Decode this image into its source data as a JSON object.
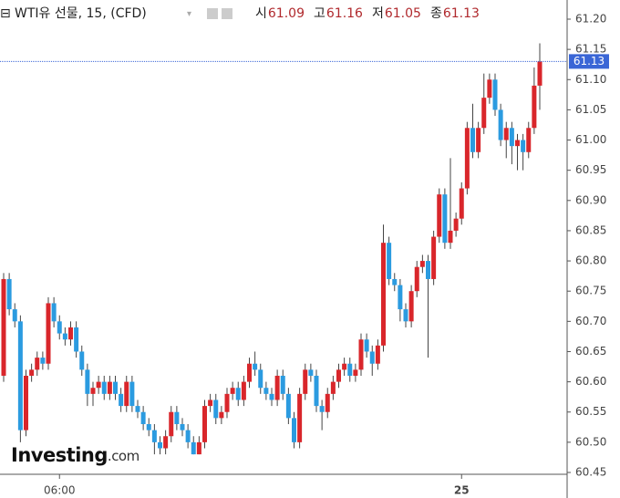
{
  "chart_data": {
    "type": "candlestick",
    "title": "WTI유 선물, 15, (CFD)",
    "ohlc_legend": [
      {
        "label": "시",
        "value": 61.09
      },
      {
        "label": "고",
        "value": 61.16
      },
      {
        "label": "저",
        "value": 61.05
      },
      {
        "label": "종",
        "value": 61.13
      }
    ],
    "logo_main": "Investing",
    "logo_suffix": ".com",
    "up_color": "#d9262b",
    "down_color": "#2b9be0",
    "last_price": 61.13,
    "last_price_color": "#3a66d6",
    "ylim": [
      60.45,
      61.2
    ],
    "yticks": [
      60.45,
      {
        "value": 60.5,
        "label": "60.50"
      },
      60.55,
      {
        "value": 60.6,
        "label": "60.60"
      },
      60.65,
      {
        "value": 60.7,
        "label": "60.70"
      },
      60.75,
      {
        "value": 60.8,
        "label": "60.80"
      },
      60.85,
      {
        "value": 60.9,
        "label": "60.90"
      },
      60.95,
      {
        "value": 61.0,
        "label": "61.00"
      },
      61.05,
      {
        "value": 61.1,
        "label": "61.10"
      },
      61.15,
      {
        "value": 61.2,
        "label": "61.20"
      }
    ],
    "xticks": [
      {
        "value": 10,
        "label": "06:00"
      },
      {
        "value": 82,
        "label": "25"
      }
    ],
    "open": [
      60.61,
      60.77,
      60.72,
      60.7,
      60.52,
      60.61,
      60.62,
      60.64,
      60.63,
      60.73,
      60.7,
      60.68,
      60.67,
      60.69,
      60.65,
      60.62,
      60.58,
      60.59,
      60.6,
      60.58,
      60.6,
      60.58,
      60.56,
      60.6,
      60.56,
      60.55,
      60.53,
      60.52,
      60.5,
      60.49,
      60.51,
      60.55,
      60.53,
      60.52,
      60.5,
      60.48,
      60.5,
      60.56,
      60.57,
      60.54,
      60.55,
      60.58,
      60.59,
      60.57,
      60.6,
      60.63,
      60.62,
      60.59,
      60.58,
      60.57,
      60.61,
      60.58,
      60.54,
      60.5,
      60.58,
      60.62,
      60.61,
      60.56,
      60.55,
      60.58,
      60.6,
      60.62,
      60.63,
      60.61,
      60.62,
      60.67,
      60.65,
      60.63,
      60.66,
      60.83,
      60.77,
      60.76,
      60.72,
      60.7,
      60.75,
      60.79,
      60.8,
      60.77,
      60.84,
      60.91,
      60.83,
      60.85,
      60.87,
      60.92,
      61.02,
      60.98,
      61.02,
      61.07,
      61.1,
      61.05,
      61.0,
      61.02,
      60.99,
      61.0,
      60.98,
      61.02,
      61.09
    ],
    "high": [
      60.78,
      60.78,
      60.73,
      60.71,
      60.62,
      60.63,
      60.65,
      60.65,
      60.74,
      60.74,
      60.71,
      60.69,
      60.7,
      60.7,
      60.66,
      60.63,
      60.6,
      60.61,
      60.61,
      60.61,
      60.61,
      60.59,
      60.61,
      60.61,
      60.57,
      60.56,
      60.54,
      60.53,
      60.51,
      60.52,
      60.56,
      60.56,
      60.54,
      60.53,
      60.51,
      60.51,
      60.57,
      60.58,
      60.58,
      60.56,
      60.59,
      60.6,
      60.6,
      60.61,
      60.64,
      60.65,
      60.63,
      60.6,
      60.59,
      60.62,
      60.62,
      60.59,
      60.55,
      60.59,
      60.63,
      60.63,
      60.62,
      60.57,
      60.59,
      60.61,
      60.63,
      60.64,
      60.64,
      60.63,
      60.68,
      60.68,
      60.66,
      60.67,
      60.86,
      60.84,
      60.78,
      60.77,
      60.73,
      60.76,
      60.8,
      60.81,
      60.81,
      60.85,
      60.92,
      60.92,
      60.97,
      60.88,
      60.93,
      61.03,
      61.06,
      61.03,
      61.11,
      61.11,
      61.11,
      61.06,
      61.03,
      61.03,
      61.01,
      61.01,
      61.03,
      61.12,
      61.16
    ],
    "low": [
      60.6,
      60.71,
      60.69,
      60.5,
      60.51,
      60.6,
      60.61,
      60.62,
      60.62,
      60.69,
      60.67,
      60.66,
      60.66,
      60.64,
      60.61,
      60.56,
      60.56,
      60.58,
      60.57,
      60.57,
      60.57,
      60.55,
      60.55,
      60.55,
      60.54,
      60.52,
      60.51,
      60.48,
      60.48,
      60.48,
      60.5,
      60.52,
      60.51,
      60.49,
      60.48,
      60.48,
      60.49,
      60.55,
      60.53,
      60.53,
      60.54,
      60.57,
      60.56,
      60.56,
      60.59,
      60.61,
      60.58,
      60.57,
      60.56,
      60.56,
      60.57,
      60.53,
      60.49,
      60.49,
      60.57,
      60.6,
      60.55,
      60.52,
      60.54,
      60.57,
      60.59,
      60.61,
      60.6,
      60.6,
      60.61,
      60.64,
      60.61,
      60.62,
      60.65,
      60.76,
      60.75,
      60.7,
      60.69,
      60.69,
      60.74,
      60.78,
      60.64,
      60.76,
      60.83,
      60.82,
      60.82,
      60.84,
      60.86,
      60.91,
      60.97,
      60.97,
      61.01,
      61.06,
      61.04,
      60.99,
      60.97,
      60.96,
      60.95,
      60.95,
      60.97,
      61.01,
      61.05
    ],
    "close": [
      60.77,
      60.72,
      60.7,
      60.52,
      60.61,
      60.62,
      60.64,
      60.63,
      60.73,
      60.7,
      60.68,
      60.67,
      60.69,
      60.65,
      60.62,
      60.58,
      60.59,
      60.6,
      60.58,
      60.6,
      60.58,
      60.56,
      60.6,
      60.56,
      60.55,
      60.53,
      60.52,
      60.5,
      60.49,
      60.51,
      60.55,
      60.53,
      60.52,
      60.5,
      60.48,
      60.5,
      60.56,
      60.57,
      60.54,
      60.55,
      60.58,
      60.59,
      60.57,
      60.6,
      60.63,
      60.62,
      60.59,
      60.58,
      60.57,
      60.61,
      60.58,
      60.54,
      60.5,
      60.58,
      60.62,
      60.61,
      60.56,
      60.55,
      60.58,
      60.6,
      60.62,
      60.63,
      60.61,
      60.62,
      60.67,
      60.65,
      60.63,
      60.66,
      60.83,
      60.77,
      60.76,
      60.72,
      60.7,
      60.75,
      60.79,
      60.8,
      60.77,
      60.84,
      60.91,
      60.83,
      60.85,
      60.87,
      60.92,
      61.02,
      60.98,
      61.02,
      61.07,
      61.1,
      61.05,
      61.0,
      61.02,
      60.99,
      61.0,
      60.98,
      61.02,
      61.09,
      61.13
    ]
  }
}
